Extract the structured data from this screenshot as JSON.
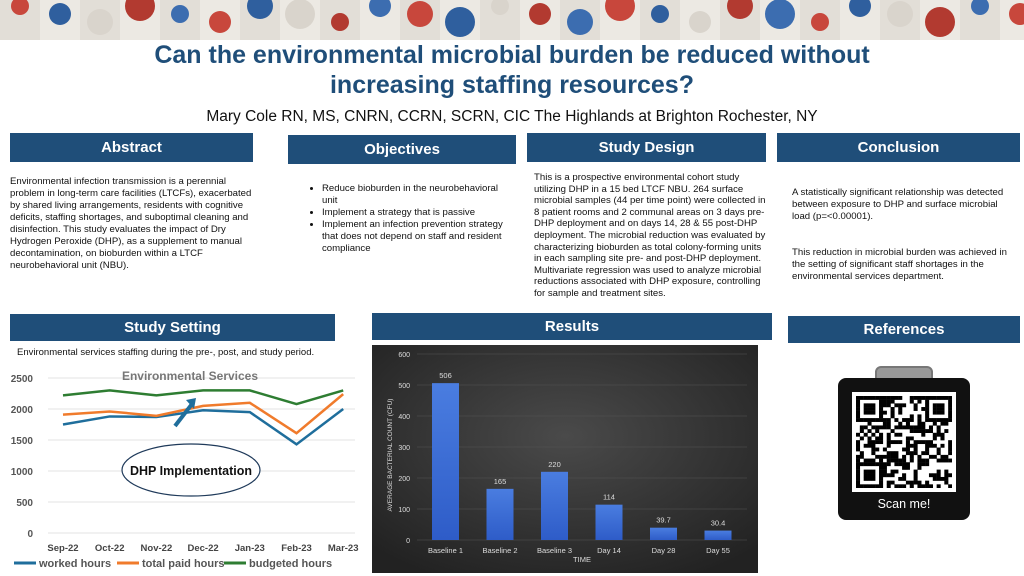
{
  "title_line1": "Can the environmental microbial burden be reduced without",
  "title_line2": "increasing staffing resources?",
  "authors": "Mary Cole RN, MS, CNRN, CCRN, SCRN, CIC  The Highlands at Brighton  Rochester, NY",
  "abstract": {
    "heading": "Abstract",
    "text": "Environmental infection transmission is a perennial problem in long-term care facilities (LTCFs), exacerbated by shared living arrangements, residents with cognitive deficits, staffing shortages, and suboptimal cleaning and disinfection.  This study evaluates the impact of Dry Hydrogen Peroxide (DHP), as a supplement to manual decontamination, on bioburden within a LTCF neurobehavioral unit (NBU)."
  },
  "objectives": {
    "heading": "Objectives",
    "items": [
      "Reduce bioburden in the neurobehavioral unit",
      "Implement a strategy that is passive",
      "Implement an infection prevention strategy that does not depend on staff and resident compliance"
    ]
  },
  "study_design": {
    "heading": "Study Design",
    "text": "This is a prospective environmental cohort study utilizing DHP in a 15 bed LTCF NBU.  264 surface microbial samples (44 per time point) were collected in 8 patient rooms and 2 communal areas on 3 days pre-DHP deployment and on days 14, 28 & 55 post-DHP deployment.  The microbial reduction was evaluated by characterizing bioburden as total colony-forming units in each sampling site pre- and post-DHP deployment.  Multivariate regression was used to analyze microbial reductions associated with DHP exposure, controlling for sample and treatment sites."
  },
  "conclusion": {
    "heading": "Conclusion",
    "p1": "A statistically significant relationship was detected between exposure to DHP and surface microbial load (p=<0.00001).",
    "p2": "This reduction in microbial burden was achieved in the setting of significant staff shortages in the environmental services department."
  },
  "study_setting": {
    "heading": "Study Setting",
    "caption": "Environmental  services staffing during the pre-, post, and study period."
  },
  "results": {
    "heading": "Results"
  },
  "references": {
    "heading": "References",
    "qr_label": "Scan me!"
  },
  "colors": {
    "navy": "#1f4e79",
    "worked": "#1f6e9c",
    "paid": "#f07b2c",
    "budgeted": "#2e7d32",
    "bar": "#3a6fd8"
  },
  "chart_data": [
    {
      "type": "line",
      "title": "Environmental Services",
      "categories": [
        "Sep-22",
        "Oct-22",
        "Nov-22",
        "Dec-22",
        "Jan-23",
        "Feb-23",
        "Mar-23"
      ],
      "series": [
        {
          "name": "worked hours",
          "values": [
            1750,
            1880,
            1870,
            1980,
            1950,
            1430,
            2000
          ]
        },
        {
          "name": "total paid hours",
          "values": [
            1910,
            1960,
            1890,
            2050,
            2100,
            1610,
            2240
          ]
        },
        {
          "name": "budgeted hours",
          "values": [
            2220,
            2300,
            2220,
            2300,
            2300,
            2080,
            2300
          ]
        }
      ],
      "yticks": [
        0,
        500,
        1000,
        1500,
        2000,
        2500
      ],
      "ylim": [
        0,
        2500
      ],
      "annotation": "DHP Implementation",
      "legend": "bottom"
    },
    {
      "type": "bar",
      "categories": [
        "Baseline 1",
        "Baseline 2",
        "Baseline 3",
        "Day 14",
        "Day 28",
        "Day 55"
      ],
      "values": [
        506,
        165,
        220,
        114,
        39.7,
        30.4
      ],
      "labels": [
        "506",
        "165",
        "220",
        "114",
        "39.7",
        "30.4"
      ],
      "xlabel": "TIME",
      "ylabel": "AVERAGE BACTERIAL COUNT (CFU)",
      "yticks": [
        0,
        100,
        200,
        300,
        400,
        500,
        600
      ],
      "ylim": [
        0,
        600
      ]
    }
  ]
}
